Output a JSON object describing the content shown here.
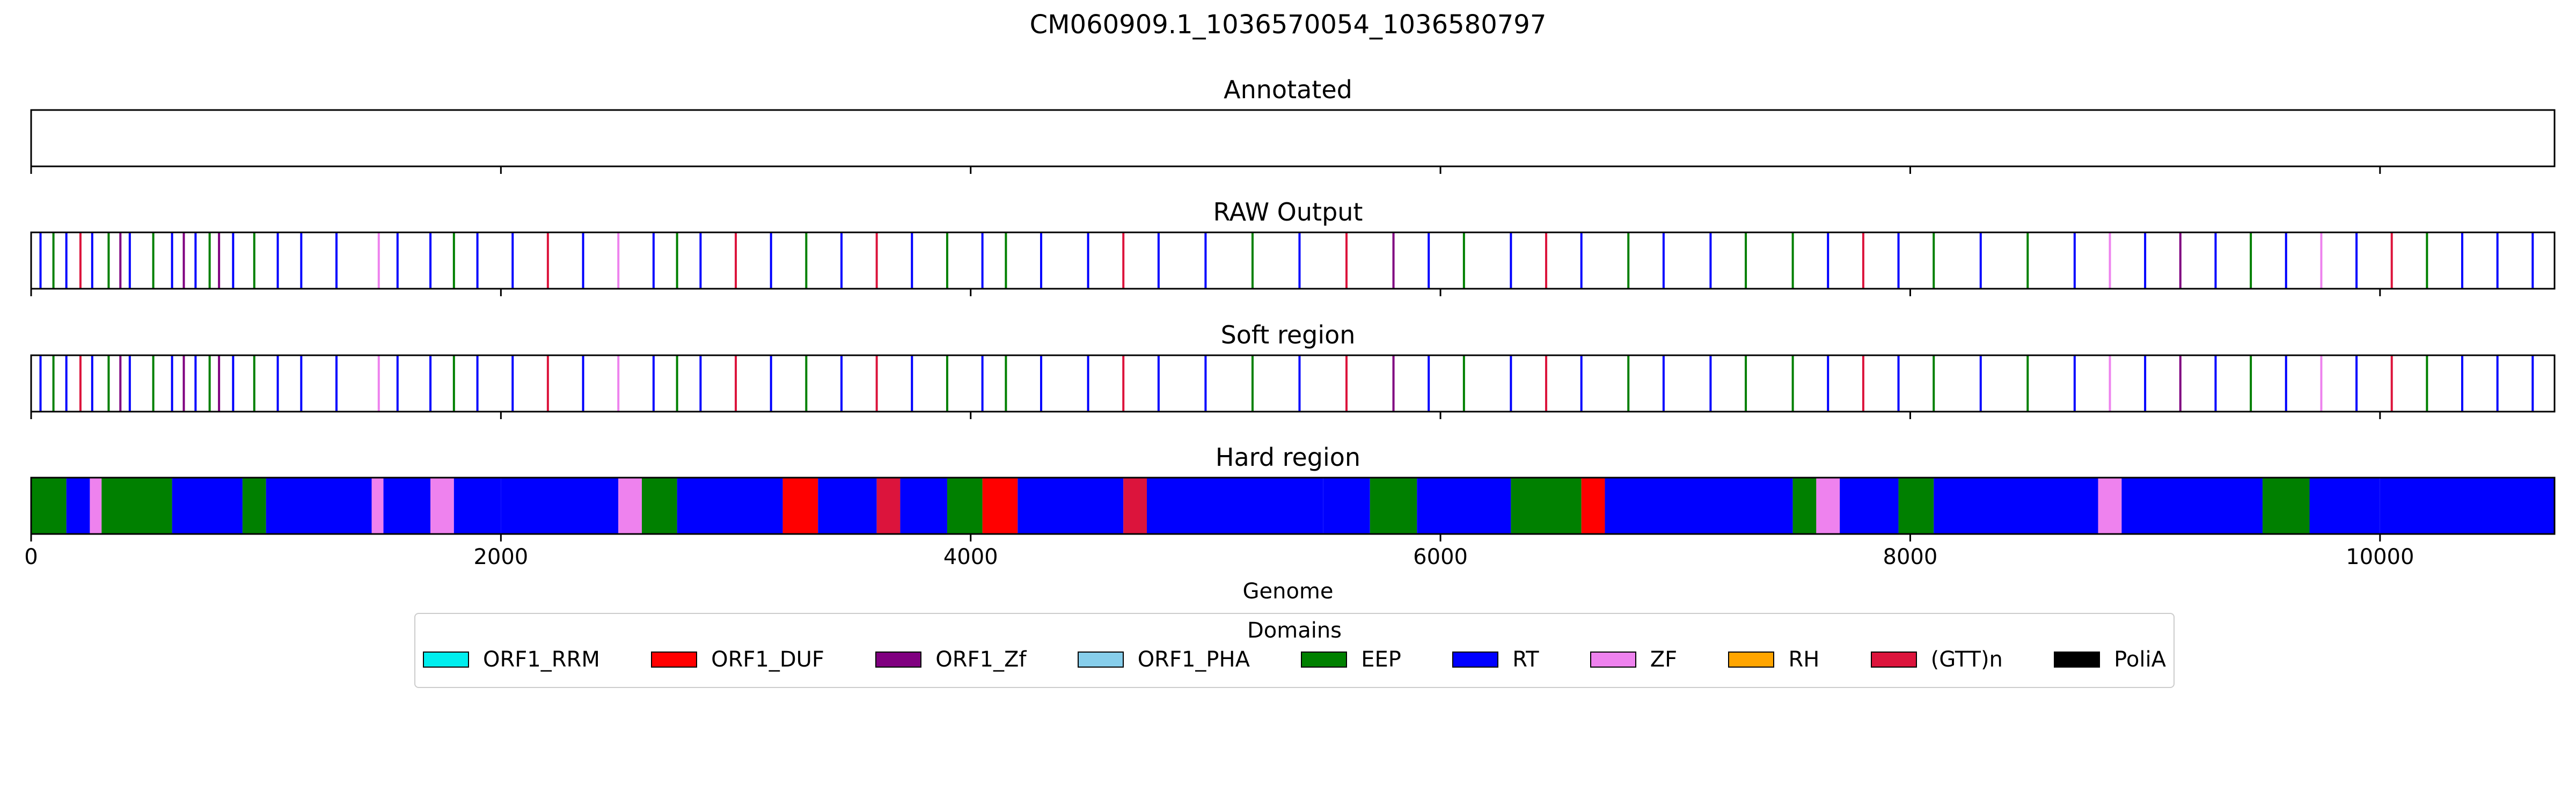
{
  "figure": {
    "suptitle": "CM060909.1_1036570054_1036580797",
    "xlabel": "Genome"
  },
  "legend": {
    "title": "Domains",
    "items": [
      {
        "label": "ORF1_RRM",
        "color": "#00eeee"
      },
      {
        "label": "ORF1_DUF",
        "color": "#ff0000"
      },
      {
        "label": "ORF1_Zf",
        "color": "#800080"
      },
      {
        "label": "ORF1_PHA",
        "color": "#87ceeb"
      },
      {
        "label": "EEP",
        "color": "#008000"
      },
      {
        "label": "RT",
        "color": "#0000ff"
      },
      {
        "label": "ZF",
        "color": "#ee82ee"
      },
      {
        "label": "RH",
        "color": "#ffa500"
      },
      {
        "label": "(GTT)n",
        "color": "#dc143c"
      },
      {
        "label": "PoliA",
        "color": "#000000"
      }
    ]
  },
  "chart_data": [
    {
      "type": "track",
      "title": "Annotated",
      "xlim": [
        0,
        10743
      ],
      "xticks": [
        0,
        2000,
        4000,
        6000,
        8000,
        10000
      ],
      "tick_labels_shown": false,
      "segments": []
    },
    {
      "type": "track",
      "title": "RAW Output",
      "xlim": [
        0,
        10743
      ],
      "xticks": [
        0,
        2000,
        4000,
        6000,
        8000,
        10000
      ],
      "tick_labels_shown": false,
      "segments": [
        [
          40,
          "RT"
        ],
        [
          95,
          "EEP"
        ],
        [
          150,
          "RT"
        ],
        [
          210,
          "(GTT)n"
        ],
        [
          260,
          "RT"
        ],
        [
          330,
          "EEP"
        ],
        [
          380,
          "ORF1_Zf"
        ],
        [
          420,
          "RT"
        ],
        [
          520,
          "EEP"
        ],
        [
          600,
          "RT"
        ],
        [
          650,
          "ORF1_Zf"
        ],
        [
          700,
          "RT"
        ],
        [
          760,
          "EEP"
        ],
        [
          800,
          "ORF1_Zf"
        ],
        [
          860,
          "RT"
        ],
        [
          950,
          "EEP"
        ],
        [
          1050,
          "RT"
        ],
        [
          1150,
          "RT"
        ],
        [
          1300,
          "RT"
        ],
        [
          1480,
          "ZF"
        ],
        [
          1560,
          "RT"
        ],
        [
          1700,
          "RT"
        ],
        [
          1800,
          "EEP"
        ],
        [
          1900,
          "RT"
        ],
        [
          2050,
          "RT"
        ],
        [
          2200,
          "(GTT)n"
        ],
        [
          2350,
          "RT"
        ],
        [
          2500,
          "ZF"
        ],
        [
          2650,
          "RT"
        ],
        [
          2750,
          "EEP"
        ],
        [
          2850,
          "RT"
        ],
        [
          3000,
          "(GTT)n"
        ],
        [
          3150,
          "RT"
        ],
        [
          3300,
          "EEP"
        ],
        [
          3450,
          "RT"
        ],
        [
          3600,
          "(GTT)n"
        ],
        [
          3750,
          "RT"
        ],
        [
          3900,
          "EEP"
        ],
        [
          4050,
          "RT"
        ],
        [
          4150,
          "EEP"
        ],
        [
          4300,
          "RT"
        ],
        [
          4500,
          "RT"
        ],
        [
          4650,
          "(GTT)n"
        ],
        [
          4800,
          "RT"
        ],
        [
          5000,
          "RT"
        ],
        [
          5200,
          "EEP"
        ],
        [
          5400,
          "RT"
        ],
        [
          5600,
          "(GTT)n"
        ],
        [
          5800,
          "ORF1_Zf"
        ],
        [
          5950,
          "RT"
        ],
        [
          6100,
          "EEP"
        ],
        [
          6300,
          "RT"
        ],
        [
          6450,
          "(GTT)n"
        ],
        [
          6600,
          "RT"
        ],
        [
          6800,
          "EEP"
        ],
        [
          6950,
          "RT"
        ],
        [
          7150,
          "RT"
        ],
        [
          7300,
          "EEP"
        ],
        [
          7500,
          "EEP"
        ],
        [
          7650,
          "RT"
        ],
        [
          7800,
          "(GTT)n"
        ],
        [
          7950,
          "RT"
        ],
        [
          8100,
          "EEP"
        ],
        [
          8300,
          "RT"
        ],
        [
          8500,
          "EEP"
        ],
        [
          8700,
          "RT"
        ],
        [
          8850,
          "ZF"
        ],
        [
          9000,
          "RT"
        ],
        [
          9150,
          "ORF1_Zf"
        ],
        [
          9300,
          "RT"
        ],
        [
          9450,
          "EEP"
        ],
        [
          9600,
          "RT"
        ],
        [
          9750,
          "ZF"
        ],
        [
          9900,
          "RT"
        ],
        [
          10050,
          "(GTT)n"
        ],
        [
          10200,
          "EEP"
        ],
        [
          10350,
          "RT"
        ],
        [
          10500,
          "RT"
        ],
        [
          10650,
          "RT"
        ]
      ]
    },
    {
      "type": "track",
      "title": "Soft region",
      "xlim": [
        0,
        10743
      ],
      "xticks": [
        0,
        2000,
        4000,
        6000,
        8000,
        10000
      ],
      "tick_labels_shown": false,
      "segments": [
        [
          40,
          "RT"
        ],
        [
          95,
          "EEP"
        ],
        [
          150,
          "RT"
        ],
        [
          210,
          "(GTT)n"
        ],
        [
          260,
          "RT"
        ],
        [
          330,
          "EEP"
        ],
        [
          380,
          "ORF1_Zf"
        ],
        [
          420,
          "RT"
        ],
        [
          520,
          "EEP"
        ],
        [
          600,
          "RT"
        ],
        [
          650,
          "ORF1_Zf"
        ],
        [
          700,
          "RT"
        ],
        [
          760,
          "EEP"
        ],
        [
          800,
          "ORF1_Zf"
        ],
        [
          860,
          "RT"
        ],
        [
          950,
          "EEP"
        ],
        [
          1050,
          "RT"
        ],
        [
          1150,
          "RT"
        ],
        [
          1300,
          "RT"
        ],
        [
          1480,
          "ZF"
        ],
        [
          1560,
          "RT"
        ],
        [
          1700,
          "RT"
        ],
        [
          1800,
          "EEP"
        ],
        [
          1900,
          "RT"
        ],
        [
          2050,
          "RT"
        ],
        [
          2200,
          "(GTT)n"
        ],
        [
          2350,
          "RT"
        ],
        [
          2500,
          "ZF"
        ],
        [
          2650,
          "RT"
        ],
        [
          2750,
          "EEP"
        ],
        [
          2850,
          "RT"
        ],
        [
          3000,
          "(GTT)n"
        ],
        [
          3150,
          "RT"
        ],
        [
          3300,
          "EEP"
        ],
        [
          3450,
          "RT"
        ],
        [
          3600,
          "(GTT)n"
        ],
        [
          3750,
          "RT"
        ],
        [
          3900,
          "EEP"
        ],
        [
          4050,
          "RT"
        ],
        [
          4150,
          "EEP"
        ],
        [
          4300,
          "RT"
        ],
        [
          4500,
          "RT"
        ],
        [
          4650,
          "(GTT)n"
        ],
        [
          4800,
          "RT"
        ],
        [
          5000,
          "RT"
        ],
        [
          5200,
          "EEP"
        ],
        [
          5400,
          "RT"
        ],
        [
          5600,
          "(GTT)n"
        ],
        [
          5800,
          "ORF1_Zf"
        ],
        [
          5950,
          "RT"
        ],
        [
          6100,
          "EEP"
        ],
        [
          6300,
          "RT"
        ],
        [
          6450,
          "(GTT)n"
        ],
        [
          6600,
          "RT"
        ],
        [
          6800,
          "EEP"
        ],
        [
          6950,
          "RT"
        ],
        [
          7150,
          "RT"
        ],
        [
          7300,
          "EEP"
        ],
        [
          7500,
          "EEP"
        ],
        [
          7650,
          "RT"
        ],
        [
          7800,
          "(GTT)n"
        ],
        [
          7950,
          "RT"
        ],
        [
          8100,
          "EEP"
        ],
        [
          8300,
          "RT"
        ],
        [
          8500,
          "EEP"
        ],
        [
          8700,
          "RT"
        ],
        [
          8850,
          "ZF"
        ],
        [
          9000,
          "RT"
        ],
        [
          9150,
          "ORF1_Zf"
        ],
        [
          9300,
          "RT"
        ],
        [
          9450,
          "EEP"
        ],
        [
          9600,
          "RT"
        ],
        [
          9750,
          "ZF"
        ],
        [
          9900,
          "RT"
        ],
        [
          10050,
          "(GTT)n"
        ],
        [
          10200,
          "EEP"
        ],
        [
          10350,
          "RT"
        ],
        [
          10500,
          "RT"
        ],
        [
          10650,
          "RT"
        ]
      ]
    },
    {
      "type": "track",
      "title": "Hard region",
      "xlim": [
        0,
        10743
      ],
      "xticks": [
        0,
        2000,
        4000,
        6000,
        8000,
        10000
      ],
      "tick_labels_shown": true,
      "xlabel": "Genome",
      "segments": [
        [
          0,
          150,
          "EEP"
        ],
        [
          150,
          250,
          "RT"
        ],
        [
          250,
          300,
          "ZF"
        ],
        [
          300,
          600,
          "EEP"
        ],
        [
          600,
          900,
          "RT"
        ],
        [
          900,
          1000,
          "EEP"
        ],
        [
          1000,
          1450,
          "RT"
        ],
        [
          1450,
          1500,
          "ZF"
        ],
        [
          1500,
          1700,
          "RT"
        ],
        [
          1700,
          1800,
          "ZF"
        ],
        [
          1800,
          2000,
          "RT"
        ],
        [
          2000,
          2500,
          "RT"
        ],
        [
          2500,
          2600,
          "ZF"
        ],
        [
          2600,
          2750,
          "EEP"
        ],
        [
          2750,
          3200,
          "RT"
        ],
        [
          3200,
          3350,
          "ORF1_DUF"
        ],
        [
          3350,
          3600,
          "RT"
        ],
        [
          3600,
          3700,
          "(GTT)n"
        ],
        [
          3700,
          3900,
          "RT"
        ],
        [
          3900,
          4050,
          "EEP"
        ],
        [
          4050,
          4200,
          "ORF1_DUF"
        ],
        [
          4200,
          4650,
          "RT"
        ],
        [
          4650,
          4750,
          "(GTT)n"
        ],
        [
          4750,
          5500,
          "RT"
        ],
        [
          5500,
          5700,
          "RT"
        ],
        [
          5700,
          5900,
          "EEP"
        ],
        [
          5900,
          6300,
          "RT"
        ],
        [
          6300,
          6600,
          "EEP"
        ],
        [
          6600,
          6700,
          "ORF1_DUF"
        ],
        [
          6700,
          7500,
          "RT"
        ],
        [
          7500,
          7600,
          "EEP"
        ],
        [
          7600,
          7700,
          "ZF"
        ],
        [
          7700,
          7950,
          "RT"
        ],
        [
          7950,
          8100,
          "EEP"
        ],
        [
          8100,
          8800,
          "RT"
        ],
        [
          8800,
          8900,
          "ZF"
        ],
        [
          8900,
          9500,
          "RT"
        ],
        [
          9500,
          9700,
          "EEP"
        ],
        [
          9700,
          10000,
          "RT"
        ],
        [
          10000,
          10743,
          "RT"
        ]
      ]
    }
  ]
}
